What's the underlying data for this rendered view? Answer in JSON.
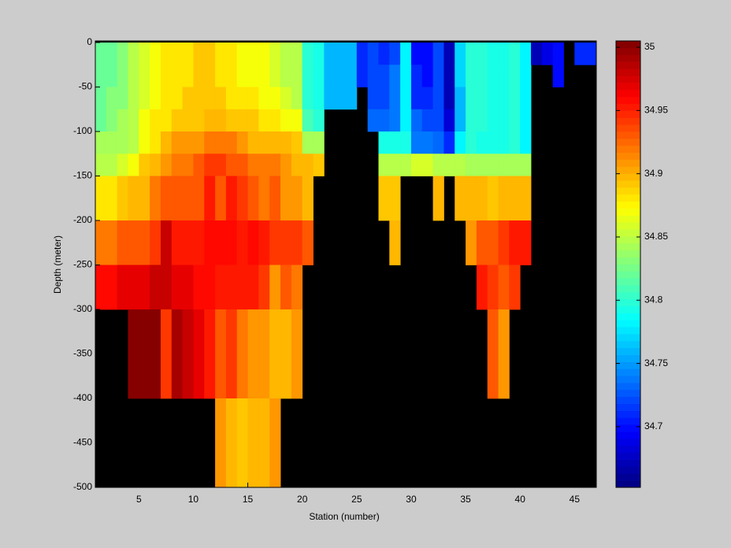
{
  "chart_data": {
    "type": "heatmap",
    "xlabel": "Station (number)",
    "ylabel": "Depth (meter)",
    "x": [
      1,
      2,
      3,
      4,
      5,
      6,
      7,
      8,
      9,
      10,
      11,
      12,
      13,
      14,
      15,
      16,
      17,
      18,
      19,
      20,
      21,
      22,
      23,
      24,
      25,
      26,
      27,
      28,
      29,
      30,
      31,
      32,
      33,
      34,
      35,
      36,
      37,
      38,
      39,
      40,
      41,
      42,
      43,
      44,
      45,
      46
    ],
    "depth_edges": [
      0,
      -25,
      -50,
      -75,
      -100,
      -125,
      -150,
      -200,
      -250,
      -300,
      -400,
      -500
    ],
    "values": [
      [
        34.82,
        34.82,
        34.82,
        34.82,
        34.84,
        34.85,
        34.88,
        34.92,
        34.96,
        null,
        null
      ],
      [
        34.82,
        34.82,
        34.83,
        34.83,
        34.84,
        34.85,
        34.88,
        34.92,
        34.96,
        null,
        null
      ],
      [
        34.83,
        34.83,
        34.83,
        34.84,
        34.84,
        34.86,
        34.89,
        34.93,
        34.97,
        null,
        null
      ],
      [
        34.85,
        34.85,
        34.85,
        34.85,
        34.85,
        34.87,
        34.9,
        34.93,
        34.97,
        35.0,
        null
      ],
      [
        34.86,
        34.86,
        34.86,
        34.87,
        34.87,
        34.89,
        34.9,
        34.93,
        34.97,
        35.0,
        null
      ],
      [
        34.87,
        34.87,
        34.87,
        34.88,
        34.88,
        34.9,
        34.92,
        34.94,
        34.98,
        35.0,
        null
      ],
      [
        34.88,
        34.88,
        34.88,
        34.88,
        34.9,
        34.91,
        34.93,
        34.98,
        34.98,
        34.94,
        null
      ],
      [
        34.88,
        34.88,
        34.88,
        34.89,
        34.91,
        34.92,
        34.93,
        34.95,
        34.97,
        34.99,
        null
      ],
      [
        34.88,
        34.88,
        34.89,
        34.89,
        34.91,
        34.92,
        34.93,
        34.95,
        34.97,
        34.98,
        null
      ],
      [
        34.89,
        34.89,
        34.89,
        34.89,
        34.91,
        34.93,
        34.93,
        34.95,
        34.96,
        34.97,
        null
      ],
      [
        34.89,
        34.89,
        34.89,
        34.9,
        34.92,
        34.94,
        34.95,
        34.96,
        34.96,
        34.95,
        null
      ],
      [
        34.88,
        34.88,
        34.89,
        34.9,
        34.92,
        34.94,
        34.93,
        34.96,
        34.95,
        34.93,
        34.91
      ],
      [
        34.88,
        34.88,
        34.88,
        34.89,
        34.92,
        34.93,
        34.95,
        34.96,
        34.95,
        34.94,
        34.9
      ],
      [
        34.87,
        34.87,
        34.88,
        34.89,
        34.91,
        34.93,
        34.94,
        34.95,
        34.95,
        34.92,
        34.89
      ],
      [
        34.87,
        34.87,
        34.88,
        34.89,
        34.9,
        34.92,
        34.93,
        34.96,
        34.95,
        34.91,
        34.9
      ],
      [
        34.87,
        34.87,
        34.87,
        34.88,
        34.9,
        34.92,
        34.92,
        34.95,
        34.94,
        34.91,
        34.9
      ],
      [
        34.86,
        34.86,
        34.87,
        34.88,
        34.9,
        34.92,
        34.93,
        34.94,
        34.91,
        34.9,
        34.91
      ],
      [
        34.85,
        34.85,
        34.86,
        34.87,
        34.9,
        34.91,
        34.91,
        34.94,
        34.93,
        34.9,
        null
      ],
      [
        34.85,
        34.85,
        34.85,
        34.87,
        34.89,
        34.9,
        34.91,
        34.94,
        34.92,
        34.91,
        null
      ],
      [
        34.8,
        34.8,
        34.8,
        34.81,
        34.84,
        34.9,
        34.9,
        34.93,
        null,
        null,
        null
      ],
      [
        34.79,
        34.79,
        34.79,
        34.8,
        34.84,
        34.89,
        null,
        null,
        null,
        null,
        null
      ],
      [
        34.76,
        34.76,
        34.76,
        null,
        null,
        null,
        null,
        null,
        null,
        null,
        null
      ],
      [
        34.76,
        34.76,
        34.76,
        null,
        null,
        null,
        null,
        null,
        null,
        null,
        null
      ],
      [
        34.76,
        34.76,
        34.76,
        null,
        null,
        null,
        null,
        null,
        null,
        null,
        null
      ],
      [
        34.71,
        34.71,
        null,
        null,
        null,
        null,
        null,
        null,
        null,
        null,
        null
      ],
      [
        34.72,
        34.72,
        34.72,
        34.73,
        null,
        null,
        null,
        null,
        null,
        null,
        null
      ],
      [
        34.71,
        34.72,
        34.72,
        34.73,
        34.79,
        34.85,
        34.89,
        null,
        null,
        null,
        null
      ],
      [
        34.72,
        34.74,
        34.74,
        34.74,
        34.79,
        34.85,
        34.89,
        34.9,
        null,
        null,
        null
      ],
      [
        34.78,
        34.78,
        34.78,
        34.78,
        34.79,
        34.85,
        null,
        null,
        null,
        null,
        null
      ],
      [
        34.7,
        34.71,
        34.71,
        34.73,
        34.74,
        34.86,
        null,
        null,
        null,
        null,
        null
      ],
      [
        34.7,
        34.7,
        34.71,
        34.72,
        34.74,
        34.86,
        null,
        null,
        null,
        null,
        null
      ],
      [
        34.72,
        34.72,
        34.72,
        34.72,
        34.73,
        34.85,
        34.9,
        null,
        null,
        null,
        null
      ],
      [
        34.67,
        34.67,
        34.67,
        34.68,
        34.71,
        34.85,
        null,
        null,
        null,
        null,
        null
      ],
      [
        34.77,
        34.77,
        34.76,
        34.76,
        34.78,
        34.85,
        34.9,
        null,
        null,
        null,
        null
      ],
      [
        34.8,
        34.8,
        34.8,
        34.8,
        34.8,
        34.84,
        34.9,
        34.91,
        null,
        null,
        null
      ],
      [
        34.8,
        34.8,
        34.8,
        34.8,
        34.79,
        34.84,
        34.9,
        34.93,
        34.95,
        null,
        null
      ],
      [
        34.79,
        34.79,
        34.79,
        34.79,
        34.79,
        34.84,
        34.89,
        34.93,
        34.94,
        34.93,
        null
      ],
      [
        34.79,
        34.79,
        34.79,
        34.79,
        34.79,
        34.84,
        34.9,
        34.94,
        34.93,
        34.91,
        null
      ],
      [
        34.8,
        34.8,
        34.8,
        34.8,
        34.8,
        34.84,
        34.9,
        34.95,
        34.94,
        null,
        null
      ],
      [
        34.78,
        34.78,
        34.78,
        34.78,
        34.78,
        34.84,
        34.9,
        34.95,
        null,
        null,
        null
      ],
      [
        34.67,
        null,
        null,
        null,
        null,
        null,
        null,
        null,
        null,
        null,
        null
      ],
      [
        34.69,
        null,
        null,
        null,
        null,
        null,
        null,
        null,
        null,
        null,
        null
      ],
      [
        34.7,
        34.7,
        null,
        null,
        null,
        null,
        null,
        null,
        null,
        null,
        null
      ],
      [
        null,
        null,
        null,
        null,
        null,
        null,
        null,
        null,
        null,
        null,
        null
      ],
      [
        34.71,
        null,
        null,
        null,
        null,
        null,
        null,
        null,
        null,
        null,
        null
      ],
      [
        34.71,
        null,
        null,
        null,
        null,
        null,
        null,
        null,
        null,
        null,
        null
      ]
    ],
    "xlim": [
      1,
      47
    ],
    "ylim": [
      -500,
      0
    ],
    "xticks": [
      5,
      10,
      15,
      20,
      25,
      30,
      35,
      40,
      45
    ],
    "yticks": [
      0,
      -50,
      -100,
      -150,
      -200,
      -250,
      -300,
      -350,
      -400,
      -450,
      -500
    ],
    "colormap": "jet",
    "clim": [
      34.652,
      35.005
    ],
    "cticks": [
      34.7,
      34.75,
      34.8,
      34.85,
      34.9,
      34.95,
      35
    ],
    "background": "#000000"
  }
}
